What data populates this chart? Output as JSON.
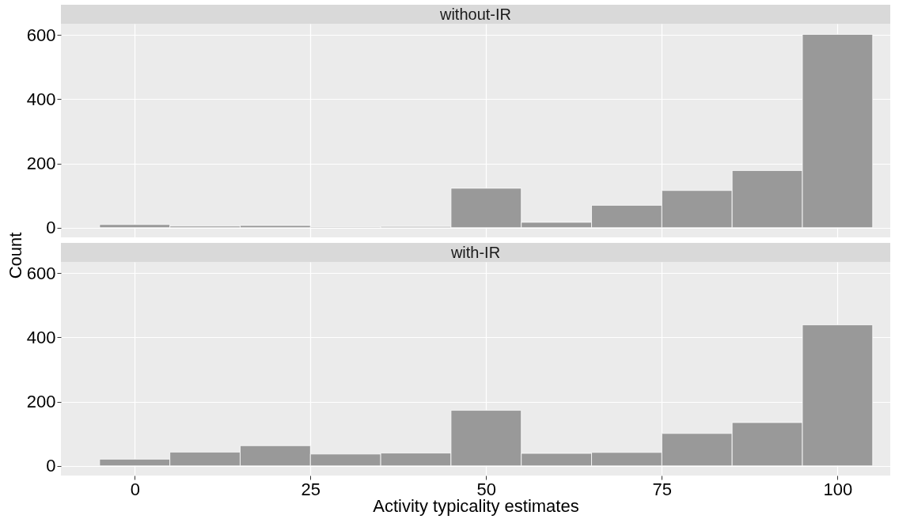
{
  "chart_data": [
    {
      "type": "histogram",
      "title": "without-IR",
      "ylabel": "Count",
      "bins": [
        -5,
        5,
        15,
        25,
        35,
        45,
        55,
        65,
        75,
        85,
        95,
        105
      ],
      "values": [
        10,
        5,
        7,
        3,
        4,
        123,
        17,
        70,
        116,
        178,
        602
      ],
      "color": "#999999",
      "xlim": [
        -10.5,
        107.5
      ],
      "ylim": [
        -30,
        635
      ],
      "xticks": [
        0,
        25,
        50,
        75,
        100
      ],
      "yticks": [
        0,
        200,
        400,
        600
      ],
      "grid": true,
      "tick_labels": "y"
    },
    {
      "type": "histogram",
      "title": "with-IR",
      "xlabel": "Activity typicality estimates",
      "bins": [
        -5,
        5,
        15,
        25,
        35,
        45,
        55,
        65,
        75,
        85,
        95,
        105
      ],
      "values": [
        21,
        43,
        63,
        37,
        40,
        173,
        39,
        42,
        101,
        135,
        439
      ],
      "color": "#999999",
      "xlim": [
        -10.5,
        107.5
      ],
      "ylim": [
        -30,
        635
      ],
      "xticks": [
        0,
        25,
        50,
        75,
        100
      ],
      "yticks": [
        0,
        200,
        400,
        600
      ],
      "grid": true
    }
  ]
}
